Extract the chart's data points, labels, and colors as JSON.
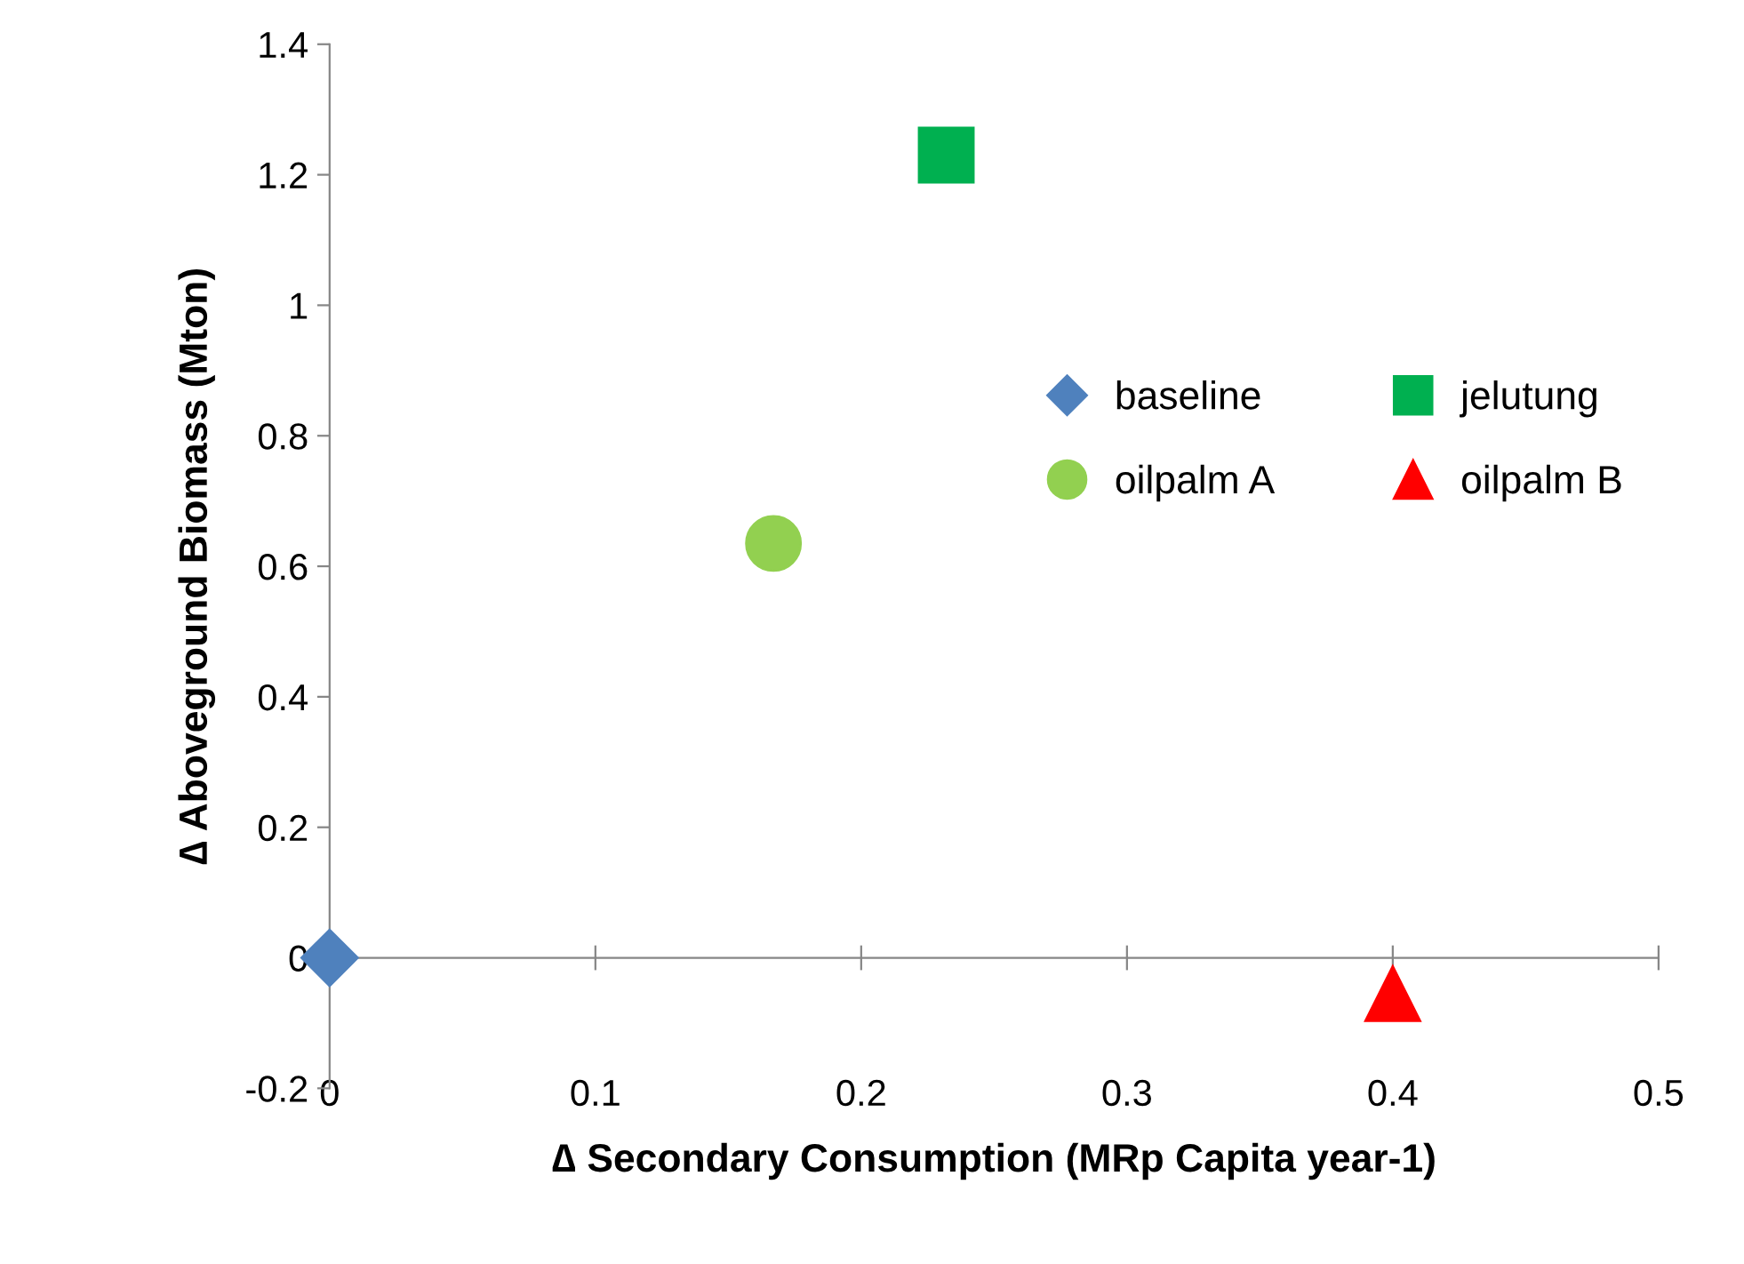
{
  "chart_data": {
    "type": "scatter",
    "xlabel": "∆ Secondary Consumption (MRp Capita year-1)",
    "ylabel": "∆ Aboveground Biomass (Mton)",
    "series": [
      {
        "name": "baseline",
        "color": "#4f81bd",
        "marker": "diamond",
        "x": [
          0
        ],
        "values": [
          0
        ]
      },
      {
        "name": "jelutung",
        "color": "#00b050",
        "marker": "square",
        "x": [
          0.232
        ],
        "values": [
          1.23
        ]
      },
      {
        "name": "oilpalm A",
        "color": "#92d050",
        "marker": "circle",
        "x": [
          0.167
        ],
        "values": [
          0.635
        ]
      },
      {
        "name": "oilpalm B",
        "color": "#ff0000",
        "marker": "triangle",
        "x": [
          0.4
        ],
        "values": [
          -0.055
        ]
      }
    ],
    "xlim": [
      0,
      0.5
    ],
    "xticks": [
      0,
      0.1,
      0.2,
      0.3,
      0.4,
      0.5
    ],
    "ylim": [
      -0.2,
      1.4
    ],
    "yticks": [
      -0.2,
      0,
      0.2,
      0.4,
      0.6,
      0.8,
      1,
      1.2,
      1.4
    ],
    "legend": "center right"
  }
}
